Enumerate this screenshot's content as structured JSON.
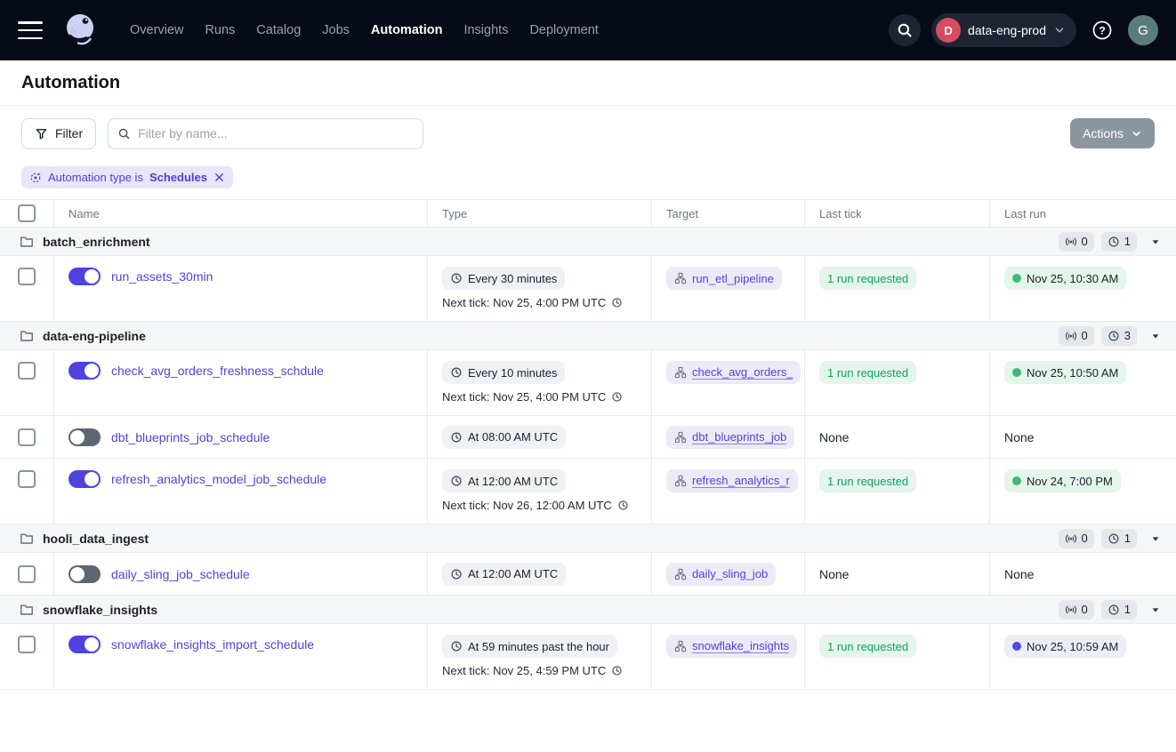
{
  "nav": {
    "links": [
      {
        "label": "Overview",
        "active": false
      },
      {
        "label": "Runs",
        "active": false
      },
      {
        "label": "Catalog",
        "active": false
      },
      {
        "label": "Jobs",
        "active": false
      },
      {
        "label": "Automation",
        "active": true
      },
      {
        "label": "Insights",
        "active": false
      },
      {
        "label": "Deployment",
        "active": false
      }
    ],
    "workspace": {
      "initial": "D",
      "name": "data-eng-prod"
    },
    "avatar_initial": "G"
  },
  "page": {
    "title": "Automation"
  },
  "toolbar": {
    "filter_button": "Filter",
    "search_placeholder": "Filter by name...",
    "actions_button": "Actions"
  },
  "filter_tag": {
    "prefix": "Automation type is",
    "value": "Schedules"
  },
  "table": {
    "columns": [
      "Name",
      "Type",
      "Target",
      "Last tick",
      "Last run"
    ],
    "groups": [
      {
        "name": "batch_enrichment",
        "sensor_count": "0",
        "schedule_count": "1",
        "rows": [
          {
            "name": "run_assets_30min",
            "enabled": true,
            "schedule": "Every 30 minutes",
            "next_tick": "Next tick: Nov 25, 4:00 PM UTC",
            "target": "run_etl_pipeline",
            "target_truncated": false,
            "last_tick": "1 run requested",
            "last_run": {
              "label": "Nov 25, 10:30 AM",
              "status": "success"
            }
          }
        ]
      },
      {
        "name": "data-eng-pipeline",
        "sensor_count": "0",
        "schedule_count": "3",
        "rows": [
          {
            "name": "check_avg_orders_freshness_schdule",
            "enabled": true,
            "schedule": "Every 10 minutes",
            "next_tick": "Next tick: Nov 25, 4:00 PM UTC",
            "target": "check_avg_orders_",
            "target_truncated": true,
            "last_tick": "1 run requested",
            "last_run": {
              "label": "Nov 25, 10:50 AM",
              "status": "success"
            }
          },
          {
            "name": "dbt_blueprints_job_schedule",
            "enabled": false,
            "schedule": "At 08:00 AM UTC",
            "next_tick": null,
            "target": "dbt_blueprints_job",
            "target_truncated": true,
            "last_tick": "None",
            "last_run": {
              "label": "None",
              "status": "none"
            }
          },
          {
            "name": "refresh_analytics_model_job_schedule",
            "enabled": true,
            "schedule": "At 12:00 AM UTC",
            "next_tick": "Next tick: Nov 26, 12:00 AM UTC",
            "target": "refresh_analytics_r",
            "target_truncated": true,
            "last_tick": "1 run requested",
            "last_run": {
              "label": "Nov 24, 7:00 PM",
              "status": "success"
            }
          }
        ]
      },
      {
        "name": "hooli_data_ingest",
        "sensor_count": "0",
        "schedule_count": "1",
        "rows": [
          {
            "name": "daily_sling_job_schedule",
            "enabled": false,
            "schedule": "At 12:00 AM UTC",
            "next_tick": null,
            "target": "daily_sling_job",
            "target_truncated": false,
            "last_tick": "None",
            "last_run": {
              "label": "None",
              "status": "none"
            }
          }
        ]
      },
      {
        "name": "snowflake_insights",
        "sensor_count": "0",
        "schedule_count": "1",
        "rows": [
          {
            "name": "snowflake_insights_import_schedule",
            "enabled": true,
            "schedule": "At 59 minutes past the hour",
            "next_tick": "Next tick: Nov 25, 4:59 PM UTC",
            "target": "snowflake_insights",
            "target_truncated": true,
            "last_tick": "1 run requested",
            "last_run": {
              "label": "Nov 25, 10:59 AM",
              "status": "started"
            }
          }
        ]
      }
    ]
  },
  "colors": {
    "nav_bg": "#070b18",
    "accent": "#4f43dd",
    "success_bg": "#e4f5eb",
    "success_text": "#159e64",
    "success_dot": "#41b976",
    "in_progress_dot": "#5048e5",
    "workspace_badge": "#d64c60",
    "avatar_bg": "#5a7d7c"
  }
}
